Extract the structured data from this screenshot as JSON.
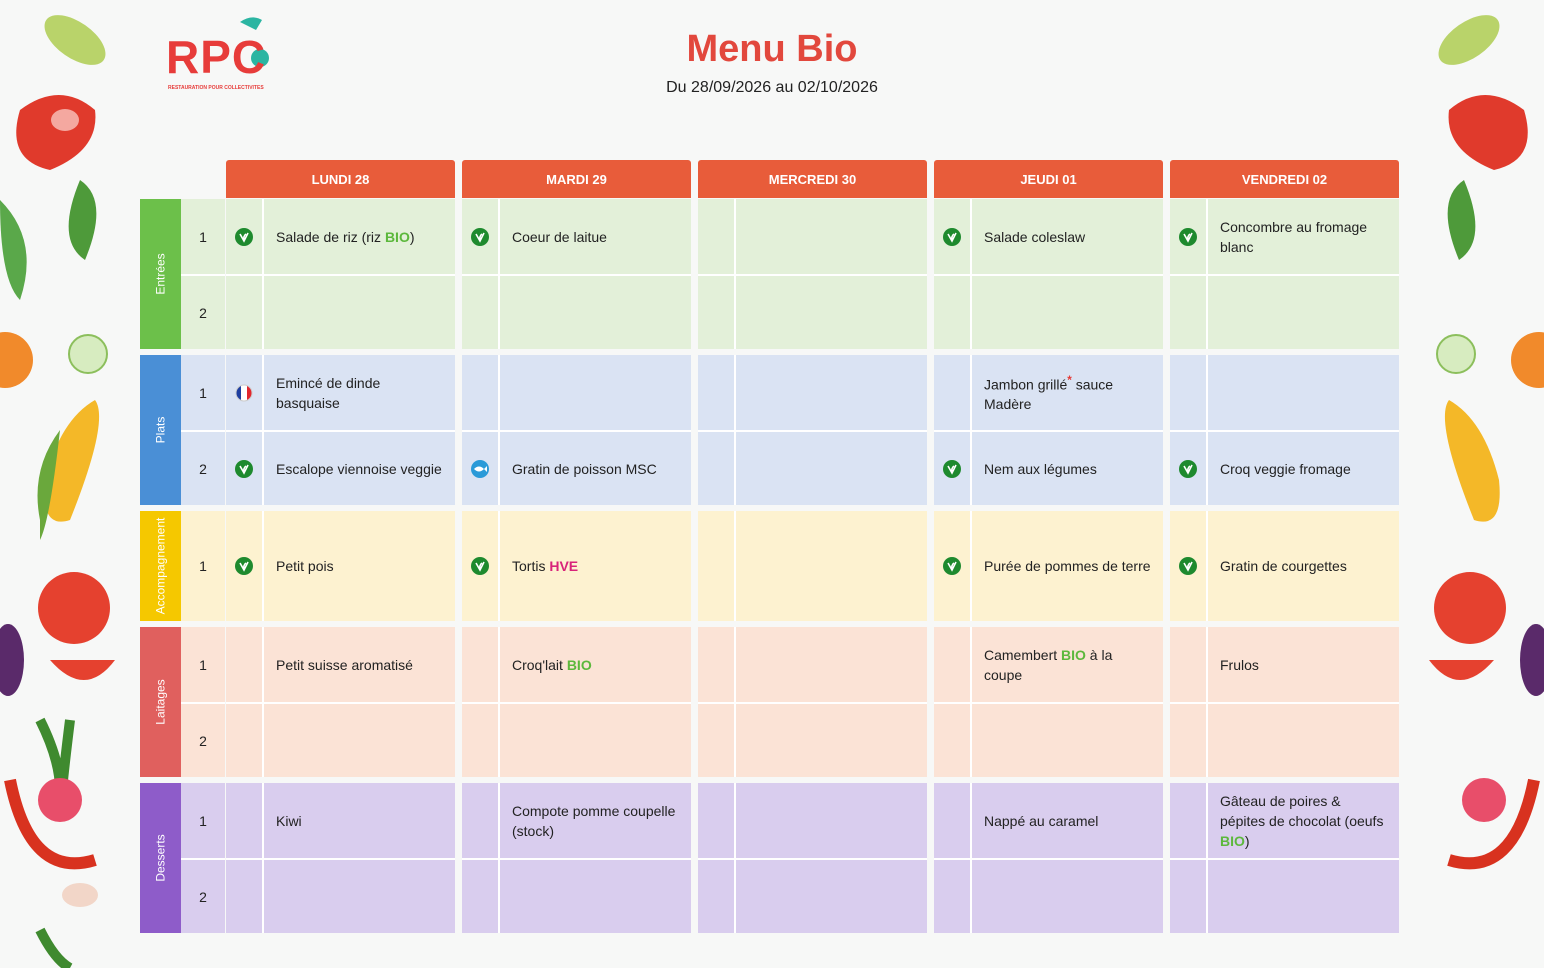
{
  "header": {
    "logo": "RPC",
    "logo_subtitle": "RESTAURATION POUR COLLECTIVITES",
    "title": "Menu Bio",
    "subtitle": "Du 28/09/2026 au 02/10/2026"
  },
  "table": {
    "header_color": "#e85c3a",
    "days": [
      "LUNDI 28",
      "MARDI 29",
      "MERCREDI 30",
      "JEUDI 01",
      "VENDREDI 02"
    ],
    "sections": [
      {
        "name": "Entrées",
        "color": "#6cc04a",
        "bg": "#e3f0d9",
        "rows": [
          {
            "number": 1,
            "cells": [
              {
                "icon": "veggie",
                "segments": [
                  {
                    "text": "Salade de riz (riz "
                  },
                  {
                    "text": "BIO",
                    "color": "#5cb83c"
                  },
                  {
                    "text": ")"
                  }
                ]
              },
              {
                "icon": "veggie",
                "segments": [
                  {
                    "text": "Coeur de laitue"
                  }
                ]
              },
              null,
              {
                "icon": "veggie",
                "segments": [
                  {
                    "text": "Salade coleslaw"
                  }
                ]
              },
              {
                "icon": "veggie",
                "segments": [
                  {
                    "text": "Concombre au fromage blanc"
                  }
                ]
              }
            ]
          },
          {
            "number": 2,
            "cells": [
              null,
              null,
              null,
              null,
              null
            ]
          }
        ]
      },
      {
        "name": "Plats",
        "color": "#4a8fd6",
        "bg": "#dae3f3",
        "rows": [
          {
            "number": 1,
            "cells": [
              {
                "icon": "france",
                "segments": [
                  {
                    "text": "Emincé de dinde basquaise"
                  }
                ]
              },
              null,
              null,
              {
                "segments": [
                  {
                    "text": "Jambon grillé"
                  },
                  {
                    "text": "*",
                    "color": "#e53935",
                    "sup": true
                  },
                  {
                    "text": " sauce Madère"
                  }
                ]
              },
              null
            ]
          },
          {
            "number": 2,
            "cells": [
              {
                "icon": "veggie",
                "segments": [
                  {
                    "text": "Escalope viennoise veggie"
                  }
                ]
              },
              {
                "icon": "fish",
                "segments": [
                  {
                    "text": "Gratin de poisson MSC"
                  }
                ]
              },
              null,
              {
                "icon": "veggie",
                "segments": [
                  {
                    "text": "Nem aux légumes"
                  }
                ]
              },
              {
                "icon": "veggie",
                "segments": [
                  {
                    "text": "Croq veggie fromage"
                  }
                ]
              }
            ]
          }
        ]
      },
      {
        "name": "Accompagnement",
        "color": "#f5c800",
        "bg": "#fdf2d0",
        "rows": [
          {
            "number": 1,
            "cells": [
              {
                "icon": "veggie",
                "segments": [
                  {
                    "text": "Petit pois"
                  }
                ]
              },
              {
                "icon": "veggie",
                "segments": [
                  {
                    "text": "Tortis "
                  },
                  {
                    "text": "HVE",
                    "color": "#d8237a"
                  }
                ]
              },
              null,
              {
                "icon": "veggie",
                "segments": [
                  {
                    "text": "Purée de pommes de terre"
                  }
                ]
              },
              {
                "icon": "veggie",
                "segments": [
                  {
                    "text": "Gratin de courgettes"
                  }
                ]
              }
            ]
          }
        ]
      },
      {
        "name": "Laitages",
        "color": "#e0605e",
        "bg": "#fbe3d6",
        "rows": [
          {
            "number": 1,
            "cells": [
              {
                "segments": [
                  {
                    "text": "Petit suisse aromatisé"
                  }
                ]
              },
              {
                "segments": [
                  {
                    "text": "Croq'lait "
                  },
                  {
                    "text": "BIO",
                    "color": "#5cb83c"
                  }
                ]
              },
              null,
              {
                "segments": [
                  {
                    "text": "Camembert "
                  },
                  {
                    "text": "BIO",
                    "color": "#5cb83c"
                  },
                  {
                    "text": " à la coupe"
                  }
                ]
              },
              {
                "segments": [
                  {
                    "text": "Frulos"
                  }
                ]
              }
            ]
          },
          {
            "number": 2,
            "cells": [
              null,
              null,
              null,
              null,
              null
            ]
          }
        ]
      },
      {
        "name": "Desserts",
        "color": "#8e5cc9",
        "bg": "#d9cdee",
        "rows": [
          {
            "number": 1,
            "cells": [
              {
                "segments": [
                  {
                    "text": "Kiwi"
                  }
                ]
              },
              {
                "segments": [
                  {
                    "text": "Compote pomme coupelle (stock)"
                  }
                ]
              },
              null,
              {
                "segments": [
                  {
                    "text": "Nappé au caramel"
                  }
                ]
              },
              {
                "segments": [
                  {
                    "text": "Gâteau de poires & pépites de chocolat (oeufs "
                  },
                  {
                    "text": "BIO",
                    "color": "#5cb83c"
                  },
                  {
                    "text": ")"
                  }
                ]
              }
            ]
          },
          {
            "number": 2,
            "cells": [
              null,
              null,
              null,
              null,
              null
            ]
          }
        ]
      }
    ]
  }
}
